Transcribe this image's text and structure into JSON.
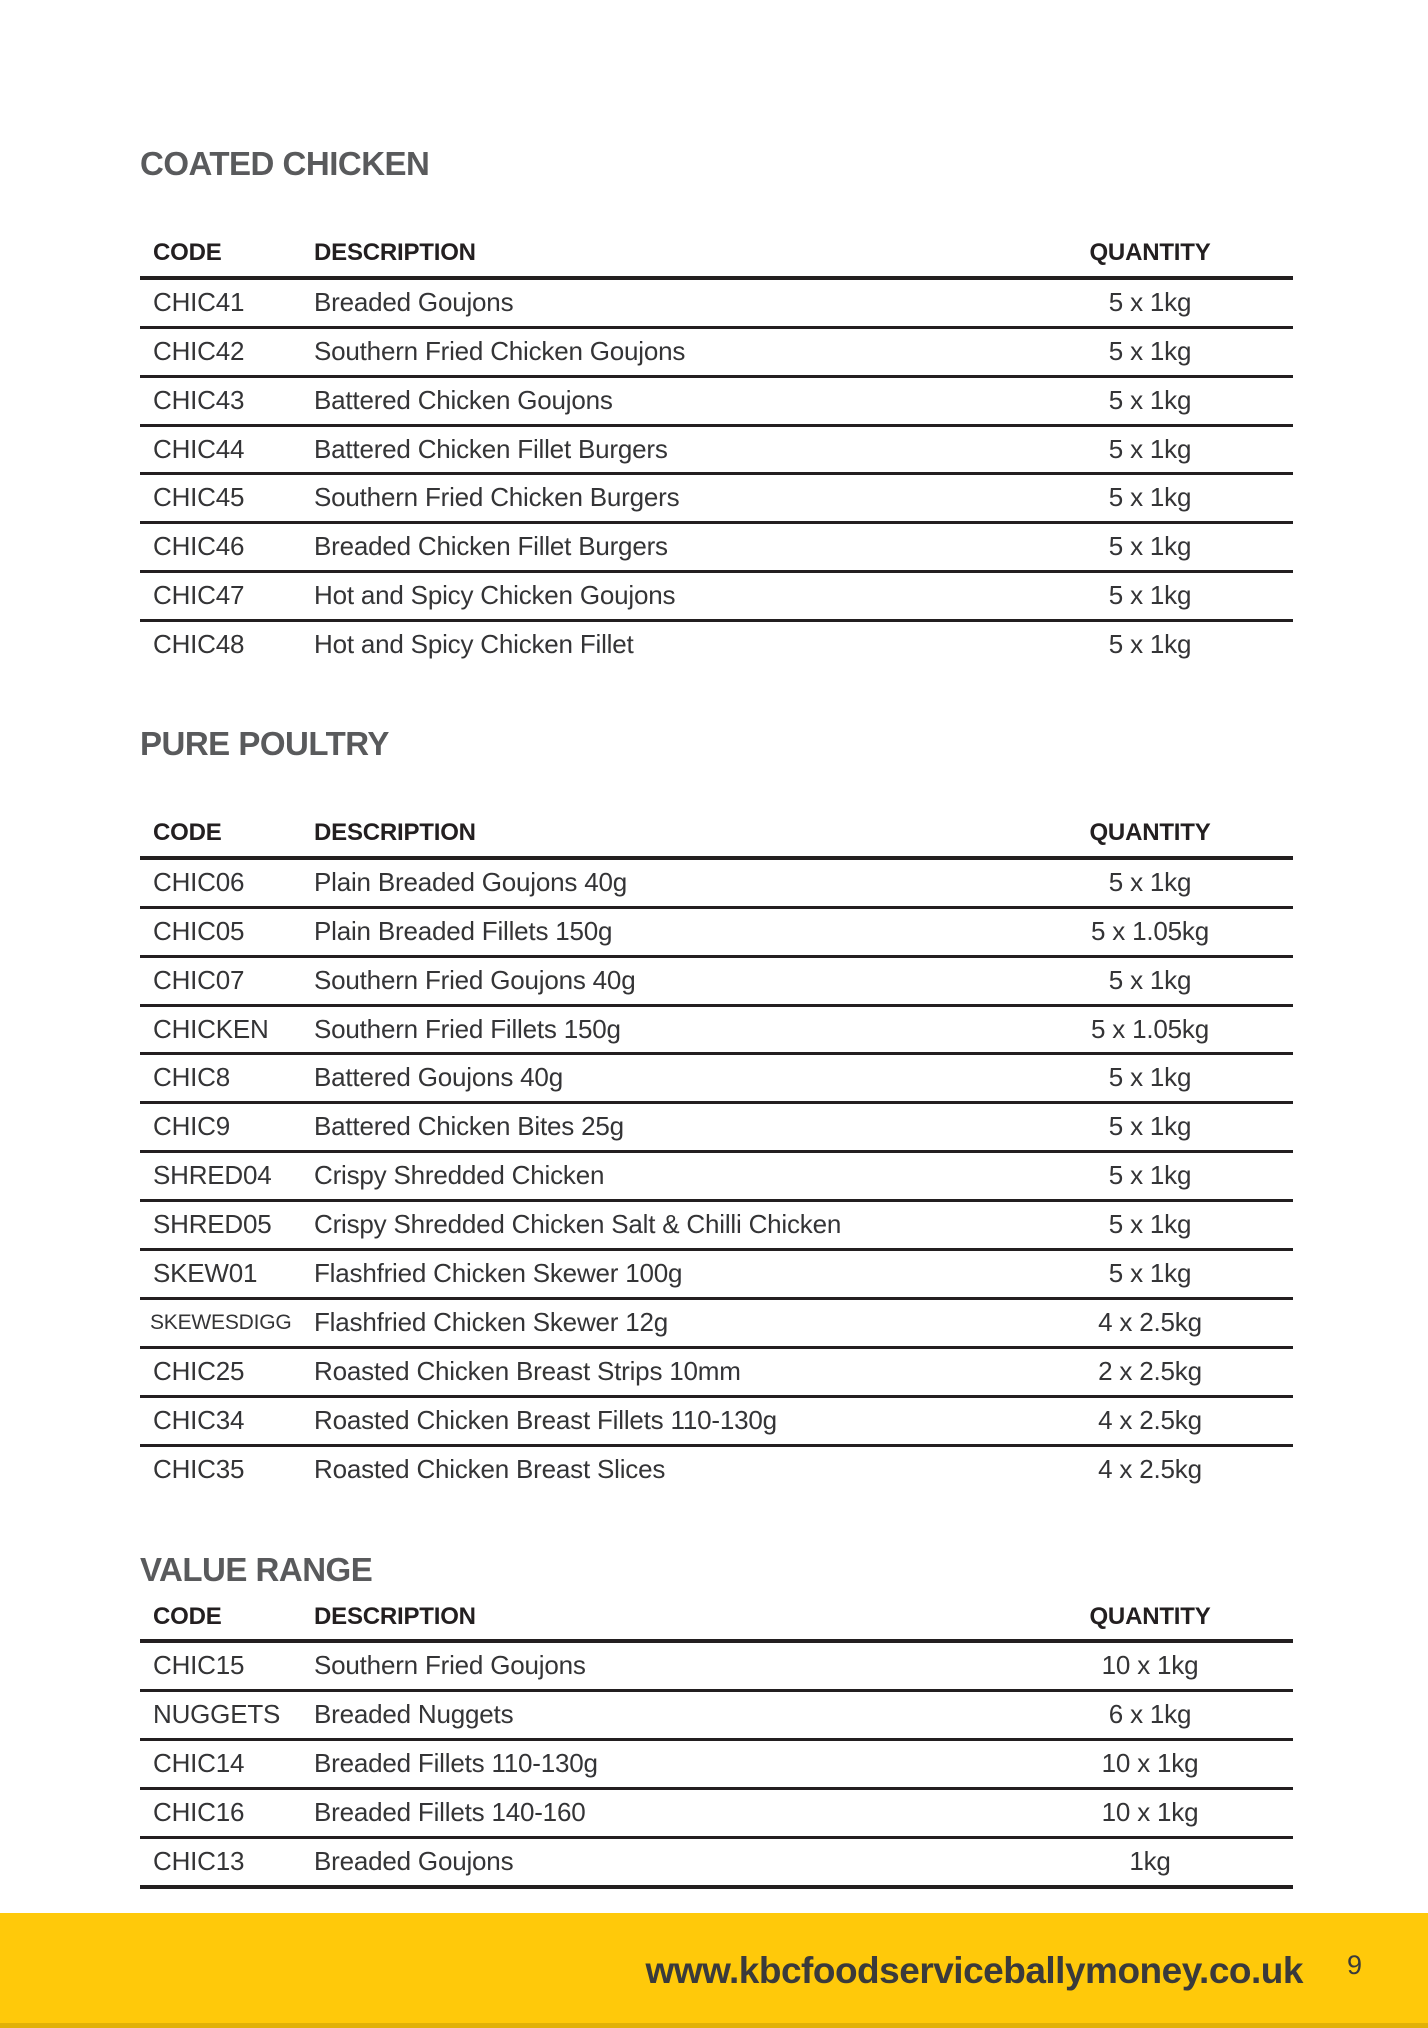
{
  "colors": {
    "accent_yellow": "#FFC90A",
    "heading_gray": "#595A5C",
    "text_dark": "#343436",
    "rule_dark": "#231F20",
    "footer_text": "#3A3A3B"
  },
  "sections": [
    {
      "title": "COATED CHICKEN",
      "headers": [
        "CODE",
        "DESCRIPTION",
        "QUANTITY"
      ],
      "rows": [
        [
          "CHIC41",
          "Breaded Goujons",
          "5 x 1kg"
        ],
        [
          "CHIC42",
          "Southern Fried Chicken Goujons",
          "5 x 1kg"
        ],
        [
          "CHIC43",
          "Battered Chicken Goujons",
          "5 x 1kg"
        ],
        [
          "CHIC44",
          "Battered Chicken Fillet Burgers",
          "5 x 1kg"
        ],
        [
          "CHIC45",
          "Southern Fried Chicken Burgers",
          "5 x 1kg"
        ],
        [
          "CHIC46",
          "Breaded Chicken Fillet Burgers",
          "5 x 1kg"
        ],
        [
          "CHIC47",
          "Hot and Spicy Chicken Goujons",
          "5 x 1kg"
        ],
        [
          "CHIC48",
          "Hot and Spicy Chicken Fillet",
          "5 x 1kg"
        ]
      ]
    },
    {
      "title": "PURE POULTRY",
      "headers": [
        "CODE",
        "DESCRIPTION",
        "QUANTITY"
      ],
      "rows": [
        [
          "CHIC06",
          "Plain Breaded Goujons 40g",
          "5 x 1kg"
        ],
        [
          "CHIC05",
          "Plain Breaded Fillets 150g",
          "5 x 1.05kg"
        ],
        [
          "CHIC07",
          "Southern Fried Goujons 40g",
          "5 x 1kg"
        ],
        [
          "CHICKEN",
          "Southern Fried Fillets 150g",
          "5 x 1.05kg"
        ],
        [
          "CHIC8",
          "Battered Goujons 40g",
          "5 x 1kg"
        ],
        [
          "CHIC9",
          "Battered Chicken Bites 25g",
          "5 x 1kg"
        ],
        [
          "SHRED04",
          "Crispy Shredded Chicken",
          "5 x 1kg"
        ],
        [
          "SHRED05",
          "Crispy Shredded Chicken Salt & Chilli Chicken",
          "5 x 1kg"
        ],
        [
          "SKEW01",
          "Flashfried Chicken Skewer 100g",
          "5 x 1kg"
        ],
        [
          "SKEWESDIGG",
          "Flashfried Chicken Skewer 12g",
          "4 x 2.5kg"
        ],
        [
          "CHIC25",
          "Roasted Chicken Breast Strips 10mm",
          "2 x 2.5kg"
        ],
        [
          "CHIC34",
          "Roasted Chicken Breast Fillets 110-130g",
          "4 x 2.5kg"
        ],
        [
          "CHIC35",
          "Roasted Chicken Breast Slices",
          "4 x 2.5kg"
        ]
      ]
    },
    {
      "title": "VALUE RANGE",
      "headers": [
        "CODE",
        "DESCRIPTION",
        "QUANTITY"
      ],
      "rows": [
        [
          "CHIC15",
          "Southern Fried Goujons",
          "10 x 1kg"
        ],
        [
          "NUGGETS",
          "Breaded Nuggets",
          "6 x 1kg"
        ],
        [
          "CHIC14",
          "Breaded Fillets 110-130g",
          "10 x 1kg"
        ],
        [
          "CHIC16",
          "Breaded Fillets 140-160",
          "10 x 1kg"
        ],
        [
          "CHIC13",
          "Breaded Goujons",
          "1kg"
        ]
      ]
    }
  ],
  "footer": {
    "url": "www.kbcfoodserviceballymoney.co.uk",
    "page_number": "9"
  }
}
